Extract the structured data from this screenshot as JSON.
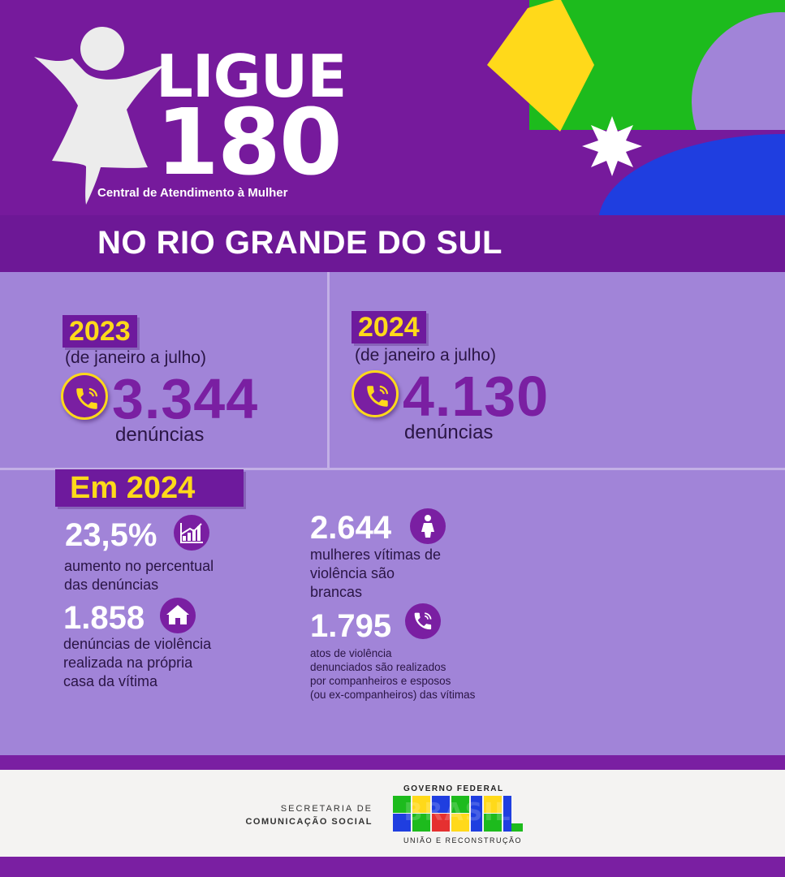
{
  "header": {
    "logo_line1": "LIGUE",
    "logo_line2": "180",
    "logo_subtitle": "Central de Atendimento à Mulher",
    "logo_icon": "woman-figure-icon"
  },
  "title": "NO RIO GRANDE DO SUL",
  "comparison": [
    {
      "year": "2023",
      "period": "(de janeiro a julho)",
      "value": "3.344",
      "label": "denúncias",
      "icon": "phone-icon"
    },
    {
      "year": "2024",
      "period": "(de janeiro a julho)",
      "value": "4.130",
      "label": "denúncias",
      "icon": "phone-icon"
    }
  ],
  "section_badge": "Em 2024",
  "stats": {
    "increase": {
      "value": "23,5%",
      "line1": "aumento no percentual",
      "line2": "das denúncias",
      "icon": "growth-chart-icon"
    },
    "home": {
      "value": "1.858",
      "line1": "denúncias de violência",
      "line2": "realizada na própria",
      "line3": "casa da vítima",
      "icon": "house-icon"
    },
    "women": {
      "value": "2.644",
      "line1": "mulheres vítimas de",
      "line2": "violência são",
      "line3": "brancas",
      "icon": "woman-icon"
    },
    "partners": {
      "value": "1.795",
      "line1": "atos de violência",
      "line2": "denunciados são realizados",
      "line3": "por companheiros e esposos",
      "line4": "(ou ex-companheiros) das vítimas",
      "icon": "phone-icon"
    }
  },
  "footer": {
    "secretaria_line1": "SECRETARIA DE",
    "secretaria_line2": "COMUNICAÇÃO SOCIAL",
    "gov_top": "GOVERNO FEDERAL",
    "gov_brand": "BRASIL",
    "gov_bottom": "UNIÃO E RECONSTRUÇÃO"
  },
  "colors": {
    "purple": "#7a1fa2",
    "light_purple": "#a184d8",
    "yellow": "#ffd91a",
    "green": "#1dbb1d",
    "blue": "#1f3ee0"
  }
}
